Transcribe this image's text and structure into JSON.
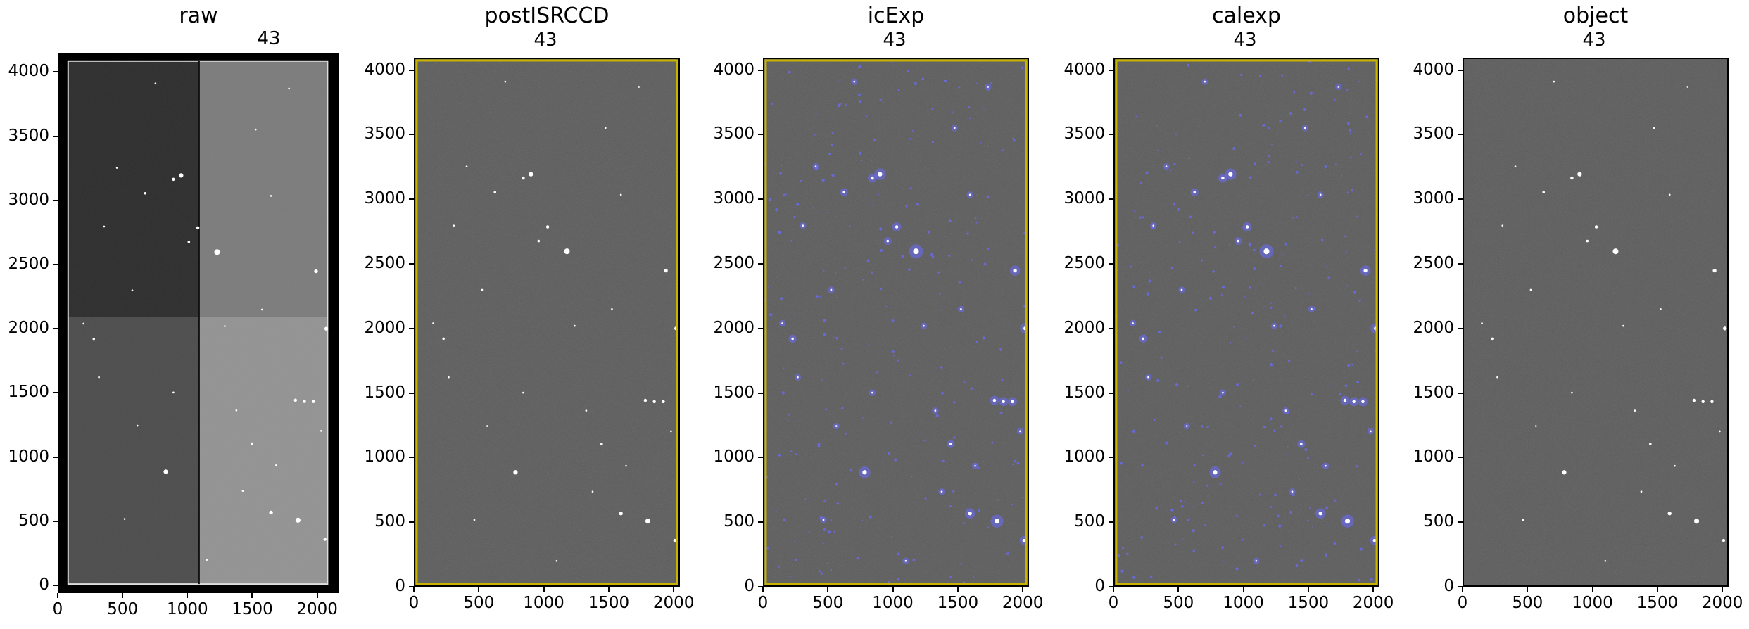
{
  "figure": {
    "colors": {
      "background": "#ffffff",
      "detection_mask": "#6b6bff",
      "edge_mask": "#c8b400",
      "axis": "#000000"
    },
    "panels": [
      {
        "key": "raw",
        "title": "raw",
        "subtitle": "43",
        "x_ticks": [
          "0",
          "500",
          "1000",
          "1500",
          "2000"
        ],
        "y_ticks": [
          "0",
          "500",
          "1000",
          "1500",
          "2000",
          "2500",
          "3000",
          "3500",
          "4000"
        ],
        "xlim": [
          0,
          2170
        ],
        "ylim": [
          -60,
          4150
        ],
        "mask_overlay": false,
        "amplifier_layout": true
      },
      {
        "key": "postISRCCD",
        "title": "postISRCCD",
        "subtitle": "43",
        "x_ticks": [
          "0",
          "500",
          "1000",
          "1500",
          "2000"
        ],
        "y_ticks": [
          "0",
          "500",
          "1000",
          "1500",
          "2000",
          "2500",
          "3000",
          "3500",
          "4000"
        ],
        "xlim": [
          0,
          2048
        ],
        "ylim": [
          0,
          4096
        ],
        "mask_overlay": false,
        "edge_mask": true
      },
      {
        "key": "icExp",
        "title": "icExp",
        "subtitle": "43",
        "x_ticks": [
          "0",
          "500",
          "1000",
          "1500",
          "2000"
        ],
        "y_ticks": [
          "0",
          "500",
          "1000",
          "1500",
          "2000",
          "2500",
          "3000",
          "3500",
          "4000"
        ],
        "xlim": [
          0,
          2048
        ],
        "ylim": [
          0,
          4096
        ],
        "mask_overlay": true,
        "edge_mask": true
      },
      {
        "key": "calexp",
        "title": "calexp",
        "subtitle": "43",
        "x_ticks": [
          "0",
          "500",
          "1000",
          "1500",
          "2000"
        ],
        "y_ticks": [
          "0",
          "500",
          "1000",
          "1500",
          "2000",
          "2500",
          "3000",
          "3500",
          "4000"
        ],
        "xlim": [
          0,
          2048
        ],
        "ylim": [
          0,
          4096
        ],
        "mask_overlay": true,
        "edge_mask": true
      },
      {
        "key": "object",
        "title": "object",
        "subtitle": "43",
        "x_ticks": [
          "0",
          "500",
          "1000",
          "1500",
          "2000"
        ],
        "y_ticks": [
          "0",
          "500",
          "1000",
          "1500",
          "2000",
          "2500",
          "3000",
          "3500",
          "4000"
        ],
        "xlim": [
          0,
          2048
        ],
        "ylim": [
          0,
          4096
        ],
        "mask_overlay": false,
        "edge_mask": false
      }
    ]
  }
}
